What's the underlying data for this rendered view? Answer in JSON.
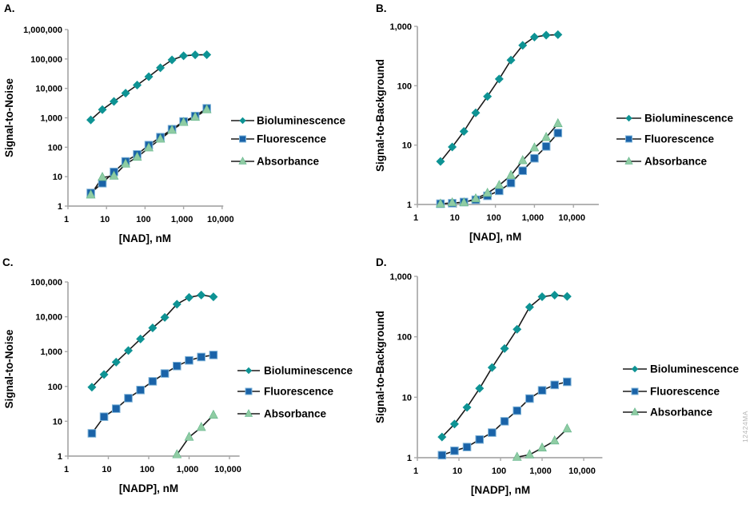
{
  "figure": {
    "watermark": "12424MA",
    "background": "#ffffff"
  },
  "colors": {
    "axis": "#a9a9a9",
    "line": "#1a1a1a",
    "text": "#000000",
    "bioluminescence": "#0e9394",
    "fluorescence": "#1a63a8",
    "absorbance": "#8fcca3",
    "fluorescence_edge": "#7eb3d8",
    "absorbance_edge": "#5fb389",
    "watermark": "#b4b4b4"
  },
  "chart_data": [
    {
      "panel": "A.",
      "type": "line",
      "x_scale": "log",
      "y_scale": "log",
      "xlabel": "[NAD], nM",
      "ylabel": "Signal-to-Noise",
      "xlim": [
        1,
        10000
      ],
      "ylim": [
        1,
        1000000
      ],
      "x_ticks": [
        "1",
        "10",
        "100",
        "1,000",
        "10,000"
      ],
      "y_ticks": [
        "1",
        "10",
        "100",
        "1,000",
        "10,000",
        "100,000",
        "1,000,000"
      ],
      "grid": false,
      "legend_position": "right",
      "series": [
        {
          "name": "Bioluminescence",
          "marker": "diamond",
          "color": "#0e9394",
          "x": [
            3.91,
            7.81,
            15.6,
            31.3,
            62.5,
            125,
            250,
            500,
            1000,
            2000,
            4000
          ],
          "y": [
            850,
            1900,
            3600,
            6900,
            13000,
            25000,
            50000,
            93000,
            128000,
            138000,
            140000
          ]
        },
        {
          "name": "Fluorescence",
          "marker": "square",
          "color": "#1a63a8",
          "x": [
            3.91,
            7.81,
            15.6,
            31.3,
            62.5,
            125,
            250,
            500,
            1000,
            2000,
            4000
          ],
          "y": [
            2.8,
            6,
            14.5,
            33,
            57,
            118,
            220,
            410,
            750,
            1150,
            2100
          ]
        },
        {
          "name": "Absorbance",
          "marker": "triangle",
          "color": "#8fcca3",
          "x": [
            3.91,
            7.81,
            15.6,
            31.3,
            62.5,
            125,
            250,
            500,
            1000,
            2000,
            4000
          ],
          "y": [
            2.4,
            9.5,
            10.5,
            27,
            46,
            96,
            190,
            380,
            700,
            1050,
            1900
          ]
        }
      ]
    },
    {
      "panel": "B.",
      "type": "line",
      "x_scale": "log",
      "y_scale": "log",
      "xlabel": "[NAD], nM",
      "ylabel": "Signal-to-Background",
      "xlim": [
        1,
        10000
      ],
      "ylim": [
        1,
        1000
      ],
      "x_ticks": [
        "1",
        "10",
        "100",
        "1,000",
        "10,000"
      ],
      "y_ticks": [
        "1",
        "10",
        "100",
        "1,000"
      ],
      "grid": false,
      "legend_position": "right",
      "series": [
        {
          "name": "Bioluminescence",
          "marker": "diamond",
          "color": "#0e9394",
          "x": [
            3.91,
            7.81,
            15.6,
            31.3,
            62.5,
            125,
            250,
            500,
            1000,
            2000,
            4000
          ],
          "y": [
            5.3,
            9.3,
            17,
            35,
            66,
            130,
            270,
            480,
            660,
            710,
            725
          ]
        },
        {
          "name": "Fluorescence",
          "marker": "square",
          "color": "#1a63a8",
          "x": [
            3.91,
            7.81,
            15.6,
            31.3,
            62.5,
            125,
            250,
            500,
            1000,
            2000,
            4000
          ],
          "y": [
            1.03,
            1.05,
            1.1,
            1.2,
            1.4,
            1.7,
            2.3,
            3.7,
            6.0,
            9.5,
            16
          ]
        },
        {
          "name": "Absorbance",
          "marker": "triangle",
          "color": "#8fcca3",
          "x": [
            3.91,
            7.81,
            15.6,
            31.3,
            62.5,
            125,
            250,
            500,
            1000,
            2000,
            4000
          ],
          "y": [
            1.02,
            1.07,
            1.07,
            1.25,
            1.55,
            2.1,
            3.1,
            5.5,
            9.0,
            13.5,
            23
          ]
        }
      ]
    },
    {
      "panel": "C.",
      "type": "line",
      "x_scale": "log",
      "y_scale": "log",
      "xlabel": "[NADP], nM",
      "ylabel": "Signal-to-Noise",
      "xlim": [
        1,
        10000
      ],
      "ylim": [
        1,
        100000
      ],
      "x_ticks": [
        "1",
        "10",
        "100",
        "1,000",
        "10,000"
      ],
      "y_ticks": [
        "1",
        "10",
        "100",
        "1,000",
        "10,000",
        "100,000"
      ],
      "grid": false,
      "legend_position": "right",
      "series": [
        {
          "name": "Bioluminescence",
          "marker": "diamond",
          "color": "#0e9394",
          "x": [
            3.91,
            7.81,
            15.6,
            31.3,
            62.5,
            125,
            250,
            500,
            1000,
            2000,
            4000
          ],
          "y": [
            95,
            220,
            500,
            1070,
            2300,
            4800,
            9600,
            23000,
            36000,
            42000,
            37500
          ]
        },
        {
          "name": "Fluorescence",
          "marker": "square",
          "color": "#1a63a8",
          "x": [
            3.91,
            7.81,
            15.6,
            31.3,
            62.5,
            125,
            250,
            500,
            1000,
            2000,
            4000
          ],
          "y": [
            4.5,
            13.5,
            23,
            46,
            79,
            140,
            235,
            385,
            560,
            700,
            800
          ]
        },
        {
          "name": "Absorbance",
          "marker": "triangle",
          "color": "#8fcca3",
          "x": [
            500,
            1000,
            2000,
            4000
          ],
          "y": [
            1.1,
            3.5,
            6.7,
            15
          ]
        }
      ]
    },
    {
      "panel": "D.",
      "type": "line",
      "x_scale": "log",
      "y_scale": "log",
      "xlabel": "[NADP], nM",
      "ylabel": "Signal-to-Background",
      "xlim": [
        1,
        10000
      ],
      "ylim": [
        1,
        1000
      ],
      "x_ticks": [
        "1",
        "10",
        "100",
        "1,000",
        "10,000"
      ],
      "y_ticks": [
        "1",
        "10",
        "100",
        "1,000"
      ],
      "grid": false,
      "legend_position": "right",
      "series": [
        {
          "name": "Bioluminescence",
          "marker": "diamond",
          "color": "#0e9394",
          "x": [
            3.91,
            7.81,
            15.6,
            31.3,
            62.5,
            125,
            250,
            500,
            1000,
            2000,
            4000
          ],
          "y": [
            2.2,
            3.6,
            6.8,
            14,
            31,
            64,
            133,
            310,
            460,
            490,
            465
          ]
        },
        {
          "name": "Fluorescence",
          "marker": "square",
          "color": "#1a63a8",
          "x": [
            3.91,
            7.81,
            15.6,
            31.3,
            62.5,
            125,
            250,
            500,
            1000,
            2000,
            4000
          ],
          "y": [
            1.1,
            1.3,
            1.5,
            2.0,
            2.6,
            4.0,
            6.0,
            9.5,
            13,
            16,
            18
          ]
        },
        {
          "name": "Absorbance",
          "marker": "triangle",
          "color": "#8fcca3",
          "x": [
            250,
            500,
            1000,
            2000,
            4000
          ],
          "y": [
            1.02,
            1.12,
            1.45,
            1.9,
            3.0
          ]
        }
      ]
    }
  ]
}
